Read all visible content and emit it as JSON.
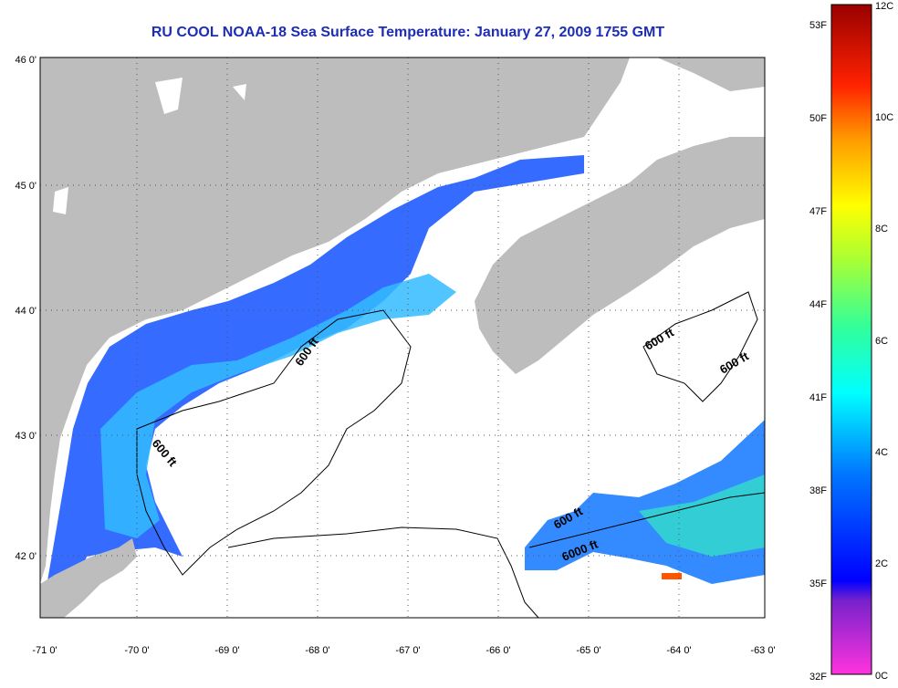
{
  "title": "RU COOL  NOAA-18  Sea Surface Temperature:  January 27, 2009 1755 GMT",
  "map": {
    "lon_ticks": [
      "-71 0'",
      "-70 0'",
      "-69 0'",
      "-68 0'",
      "-67 0'",
      "-66 0'",
      "-65 0'",
      "-64 0'",
      "-63 0'"
    ],
    "lat_ticks": [
      "46 0'",
      "45 0'",
      "44 0'",
      "43 0'",
      "42 0'"
    ],
    "contour_labels": [
      "600 ft",
      "600 ft",
      "600 ft",
      "600 ft",
      "600 ft",
      "6000 ft"
    ],
    "colors": {
      "land": "#bdbdbd",
      "ocean_nodata": "#ffffff"
    }
  },
  "colorbar": {
    "fahrenheit_labels": [
      "53F",
      "50F",
      "47F",
      "44F",
      "41F",
      "38F",
      "35F",
      "32F"
    ],
    "celsius_labels": [
      "12C",
      "10C",
      "8C",
      "6C",
      "4C",
      "2C",
      "0C"
    ]
  }
}
